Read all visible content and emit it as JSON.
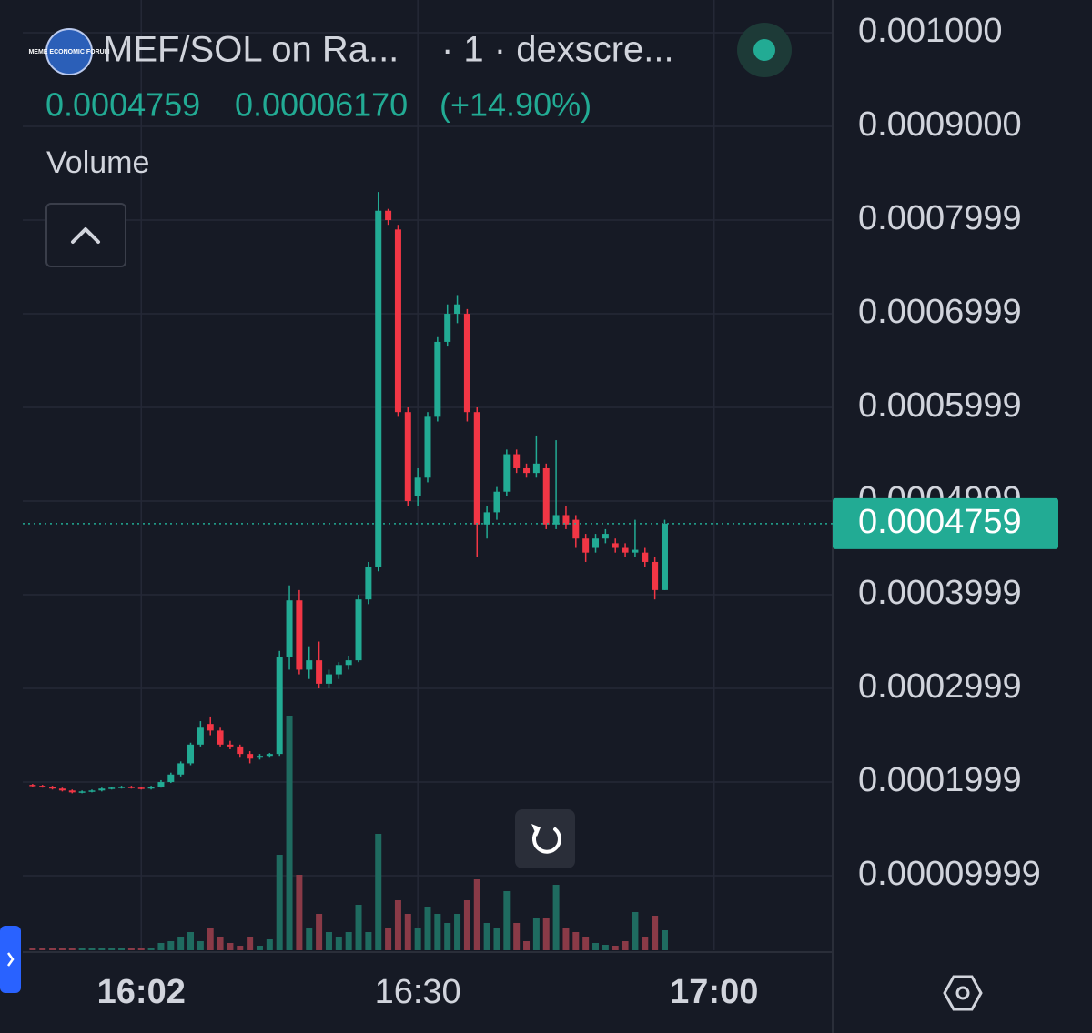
{
  "chart_data": {
    "type": "candlestick",
    "logo": "MEME ECONOMIC FORUM",
    "title": "MEF/SOL on Ra...",
    "subtitle": "· 1 · dexscre...",
    "last_price": 0.0004759,
    "change": {
      "value": 6.17e-05,
      "label": "0.00006170"
    },
    "change_pct": {
      "value": 14.9,
      "label": "(+14.90%)"
    },
    "volume_label": "Volume",
    "up_color": "#22ab94",
    "down_color": "#f23645",
    "volume_up_color": "#1f6b60",
    "volume_down_color": "#8a3a47",
    "grid": true,
    "x": [
      "15:51",
      "15:52",
      "15:53",
      "15:54",
      "15:55",
      "15:56",
      "15:57",
      "15:58",
      "15:59",
      "16:00",
      "16:01",
      "16:02",
      "16:03",
      "16:04",
      "16:05",
      "16:06",
      "16:07",
      "16:08",
      "16:09",
      "16:10",
      "16:11",
      "16:12",
      "16:13",
      "16:14",
      "16:15",
      "16:16",
      "16:17",
      "16:18",
      "16:19",
      "16:20",
      "16:21",
      "16:22",
      "16:23",
      "16:24",
      "16:25",
      "16:26",
      "16:27",
      "16:28",
      "16:29",
      "16:30",
      "16:31",
      "16:32",
      "16:33",
      "16:34",
      "16:35",
      "16:36",
      "16:37",
      "16:38",
      "16:39",
      "16:40",
      "16:41",
      "16:42",
      "16:43",
      "16:44",
      "16:45",
      "16:46",
      "16:47",
      "16:48",
      "16:49",
      "16:50",
      "16:51",
      "16:52",
      "16:53",
      "16:54",
      "16:55"
    ],
    "open": [
      0.000197,
      0.000196,
      0.000195,
      0.000193,
      0.000191,
      0.000189,
      0.00019,
      0.000191,
      0.000193,
      0.000194,
      0.000195,
      0.000194,
      0.000193,
      0.000195,
      0.0002,
      0.000208,
      0.00022,
      0.00024,
      0.000262,
      0.000255,
      0.00024,
      0.000238,
      0.00023,
      0.000226,
      0.000228,
      0.00023,
      0.000334,
      0.000394,
      0.00032,
      0.00033,
      0.000305,
      0.000315,
      0.000325,
      0.00033,
      0.000395,
      0.00043,
      0.00081,
      0.00079,
      0.000595,
      0.000505,
      0.000525,
      0.00059,
      0.00067,
      0.0007,
      0.0007,
      0.000595,
      0.000475,
      0.000488,
      0.00051,
      0.00055,
      0.000535,
      0.00053,
      0.000535,
      0.000475,
      0.000485,
      0.00048,
      0.00046,
      0.00045,
      0.00046,
      0.000455,
      0.00045,
      0.000445,
      0.000445,
      0.000435,
      0.000405
    ],
    "high": [
      0.000198,
      0.000197,
      0.000196,
      0.000194,
      0.000192,
      0.000191,
      0.000192,
      0.000194,
      0.000195,
      0.000196,
      0.000196,
      0.000195,
      0.000196,
      0.000202,
      0.00021,
      0.000222,
      0.000242,
      0.000265,
      0.00027,
      0.000258,
      0.000244,
      0.00024,
      0.000233,
      0.00023,
      0.000231,
      0.00034,
      0.00041,
      0.000405,
      0.000345,
      0.00035,
      0.00032,
      0.000328,
      0.000335,
      0.0004,
      0.000435,
      0.00083,
      0.000812,
      0.000795,
      0.0006,
      0.000535,
      0.000595,
      0.000675,
      0.00071,
      0.00072,
      0.000705,
      0.0006,
      0.000495,
      0.000515,
      0.000555,
      0.000555,
      0.00054,
      0.00057,
      0.00054,
      0.000565,
      0.000495,
      0.000485,
      0.000465,
      0.000465,
      0.00047,
      0.00046,
      0.000455,
      0.00048,
      0.00045,
      0.00044,
      0.00048
    ],
    "low": [
      0.000195,
      0.000194,
      0.000192,
      0.00019,
      0.000188,
      0.000188,
      0.000189,
      0.00019,
      0.000192,
      0.000193,
      0.000193,
      0.000192,
      0.000192,
      0.000194,
      0.000199,
      0.000206,
      0.000218,
      0.000238,
      0.00025,
      0.000238,
      0.000235,
      0.000226,
      0.00022,
      0.000224,
      0.000226,
      0.000228,
      0.00032,
      0.000315,
      0.00031,
      0.0003,
      0.0003,
      0.00031,
      0.00032,
      0.000328,
      0.00039,
      0.000425,
      0.000795,
      0.00059,
      0.000495,
      0.000495,
      0.00052,
      0.000585,
      0.000665,
      0.00069,
      0.000585,
      0.00044,
      0.00046,
      0.00048,
      0.000505,
      0.00053,
      0.000525,
      0.000525,
      0.00047,
      0.00047,
      0.00047,
      0.00045,
      0.000435,
      0.000445,
      0.000455,
      0.000445,
      0.00044,
      0.00044,
      0.00043,
      0.000395,
      0.000405
    ],
    "close": [
      0.000196,
      0.000195,
      0.000193,
      0.000191,
      0.000189,
      0.00019,
      0.000191,
      0.000193,
      0.000194,
      0.000195,
      0.000194,
      0.000193,
      0.000195,
      0.0002,
      0.000208,
      0.00022,
      0.00024,
      0.000258,
      0.000255,
      0.00024,
      0.000238,
      0.00023,
      0.000225,
      0.000228,
      0.00023,
      0.000334,
      0.000394,
      0.00032,
      0.00033,
      0.000305,
      0.000315,
      0.000325,
      0.00033,
      0.000395,
      0.00043,
      0.00081,
      0.0008,
      0.000595,
      0.0005,
      0.000525,
      0.00059,
      0.00067,
      0.0007,
      0.00071,
      0.000595,
      0.000475,
      0.000488,
      0.00051,
      0.00055,
      0.000535,
      0.00053,
      0.00054,
      0.000475,
      0.000485,
      0.000475,
      0.00046,
      0.000445,
      0.00046,
      0.000465,
      0.00045,
      0.000445,
      0.000448,
      0.000435,
      0.000405,
      0.0004759
    ],
    "volume": [
      3,
      3,
      3,
      3,
      3,
      3,
      3,
      3,
      3,
      3,
      3,
      3,
      3,
      8,
      10,
      15,
      20,
      10,
      25,
      15,
      8,
      5,
      15,
      5,
      12,
      105,
      258,
      83,
      25,
      40,
      20,
      15,
      20,
      50,
      20,
      128,
      25,
      55,
      40,
      25,
      48,
      40,
      30,
      40,
      55,
      78,
      30,
      25,
      65,
      30,
      10,
      35,
      35,
      72,
      25,
      20,
      15,
      8,
      6,
      5,
      10,
      42,
      15,
      38,
      22
    ],
    "xlim": [
      "15:50",
      "17:12"
    ],
    "xticks": [
      "16:02",
      "16:30",
      "17:00"
    ],
    "ylim": [
      2.04e-05,
      0.001035
    ],
    "yticks": [
      {
        "value": 0.001,
        "label": "0.001000"
      },
      {
        "value": 0.0009,
        "label": "0.0009000"
      },
      {
        "value": 0.0008,
        "label": "0.0007999"
      },
      {
        "value": 0.0007,
        "label": "0.0006999"
      },
      {
        "value": 0.0006,
        "label": "0.0005999"
      },
      {
        "value": 0.0005,
        "label": "0.0004999"
      },
      {
        "value": 0.0004,
        "label": "0.0003999"
      },
      {
        "value": 0.0003,
        "label": "0.0002999"
      },
      {
        "value": 0.0002,
        "label": "0.0001999"
      },
      {
        "value": 0.0001,
        "label": "0.00009999"
      }
    ]
  }
}
